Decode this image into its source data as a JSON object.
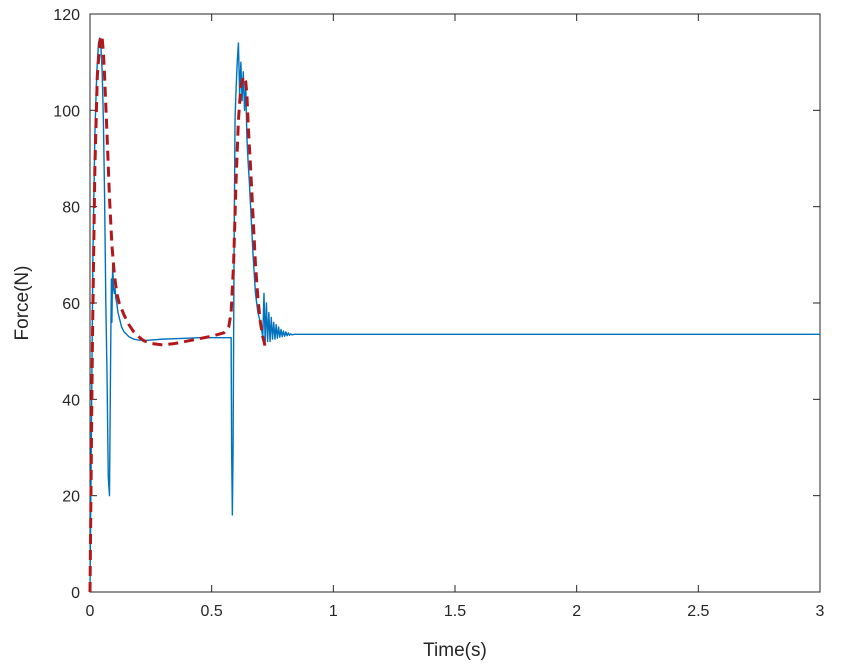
{
  "chart_data": {
    "type": "line",
    "title": "",
    "xlabel": "Time(s)",
    "ylabel": "Force(N)",
    "xlim": [
      0,
      3
    ],
    "ylim": [
      0,
      120
    ],
    "grid": false,
    "legend": "none",
    "xticks": [
      0,
      0.5,
      1,
      1.5,
      2,
      2.5,
      3
    ],
    "xtick_labels": [
      "0",
      "0.5",
      "1",
      "1.5",
      "2",
      "2.5",
      "3"
    ],
    "yticks": [
      0,
      20,
      40,
      60,
      80,
      100,
      120
    ],
    "ytick_labels": [
      "0",
      "20",
      "40",
      "60",
      "80",
      "100",
      "120"
    ],
    "series": [
      {
        "color": "#0072BD",
        "style": "solid",
        "x": [
          0,
          0.006,
          0.012,
          0.02,
          0.028,
          0.035,
          0.04,
          0.045,
          0.05,
          0.055,
          0.06,
          0.065,
          0.07,
          0.075,
          0.08,
          0.085,
          0.088,
          0.09,
          0.093,
          0.097,
          0.1,
          0.103,
          0.106,
          0.11,
          0.115,
          0.12,
          0.13,
          0.14,
          0.16,
          0.18,
          0.2,
          0.22,
          0.25,
          0.3,
          0.35,
          0.4,
          0.45,
          0.5,
          0.55,
          0.58,
          0.582,
          0.585,
          0.588,
          0.592,
          0.596,
          0.6,
          0.605,
          0.61,
          0.615,
          0.62,
          0.625,
          0.63,
          0.635,
          0.64,
          0.645,
          0.65,
          0.655,
          0.66,
          0.67,
          0.68,
          0.69,
          0.7,
          0.71,
          0.715,
          0.72,
          0.725,
          0.73,
          0.735,
          0.74,
          0.745,
          0.75,
          0.755,
          0.76,
          0.765,
          0.77,
          0.775,
          0.78,
          0.785,
          0.79,
          0.795,
          0.8,
          0.805,
          0.81,
          0.815,
          0.82,
          0.825,
          0.83,
          0.84,
          0.85,
          0.86,
          0.9,
          1,
          1.5,
          2,
          2.5,
          3
        ],
        "y": [
          0,
          35,
          70,
          95,
          108,
          114,
          115,
          113,
          108,
          98,
          82,
          60,
          45,
          24,
          20,
          50,
          65,
          56,
          68,
          63,
          62,
          63,
          61,
          60,
          58,
          57,
          55,
          54,
          53,
          52.5,
          52.3,
          52.2,
          52.3,
          52.5,
          52.6,
          52.7,
          52.8,
          52.8,
          52.8,
          52.8,
          30,
          16,
          30,
          70,
          98,
          104,
          110,
          114,
          103,
          110,
          102,
          108,
          100,
          105,
          94,
          89,
          85,
          80,
          70,
          62,
          58,
          56,
          53,
          62,
          52,
          60,
          52,
          58,
          52,
          57,
          52.5,
          56,
          52.5,
          55.5,
          52.7,
          55,
          52.9,
          54.5,
          53,
          54.2,
          53.1,
          54,
          53.2,
          53.8,
          53.3,
          53.6,
          53.4,
          53.5,
          53.5,
          53.5,
          53.5,
          53.5,
          53.5,
          53.5,
          53.5,
          53.5
        ]
      },
      {
        "color": "#B2181B",
        "style": "dashed",
        "x": [
          0,
          0.01,
          0.02,
          0.03,
          0.04,
          0.045,
          0.05,
          0.055,
          0.06,
          0.07,
          0.08,
          0.09,
          0.1,
          0.11,
          0.12,
          0.14,
          0.16,
          0.18,
          0.2,
          0.22,
          0.25,
          0.3,
          0.35,
          0.4,
          0.45,
          0.5,
          0.55,
          0.57,
          0.58,
          0.59,
          0.6,
          0.61,
          0.62,
          0.63,
          0.64,
          0.645,
          0.65,
          0.66,
          0.67,
          0.68,
          0.69,
          0.7,
          0.71,
          0.72
        ],
        "y": [
          0,
          52,
          88,
          107,
          114,
          115.5,
          115,
          112,
          107,
          95,
          82,
          72,
          66,
          62,
          60,
          57.5,
          55.5,
          54,
          53,
          52.2,
          51.6,
          51.3,
          51.6,
          52.1,
          52.6,
          53.1,
          53.8,
          55,
          58,
          68,
          85,
          98,
          105,
          107,
          106,
          103,
          97,
          88,
          78,
          68,
          61,
          56,
          53,
          51
        ]
      }
    ]
  }
}
